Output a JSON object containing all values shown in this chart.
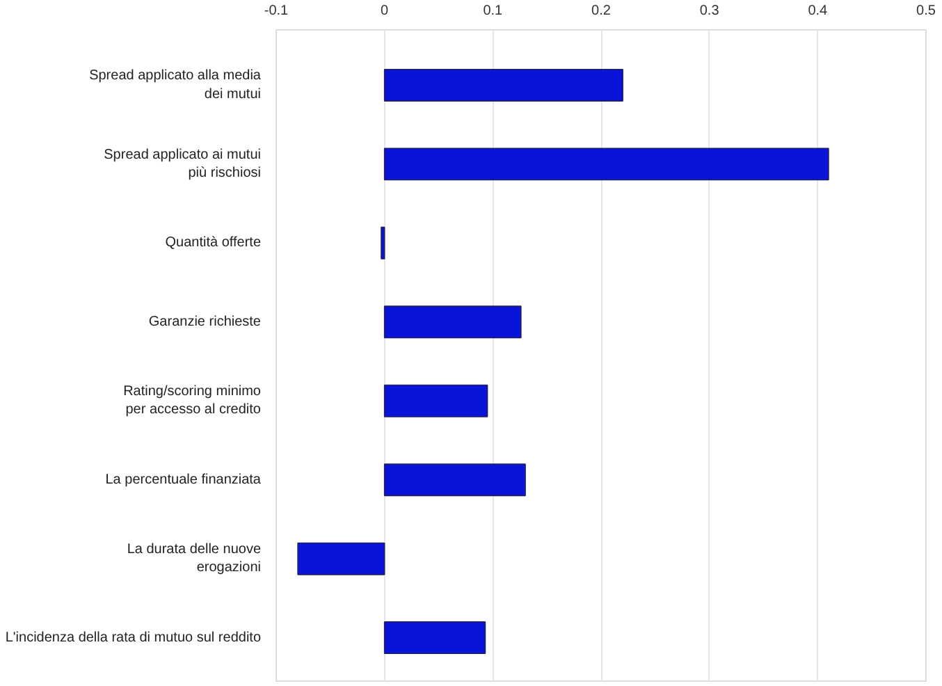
{
  "chart_data": {
    "type": "bar",
    "orientation": "horizontal",
    "categories": [
      "Spread applicato alla media\ndei mutui",
      "Spread applicato ai mutui\npiù rischiosi",
      "Quantità offerte",
      "Garanzie richieste",
      "Rating/scoring minimo\nper accesso al credito",
      "La percentuale finanziata",
      "La durata delle nuove\nerogazioni",
      "L'incidenza della rata di mutuo sul reddito"
    ],
    "values": [
      0.22,
      0.41,
      -0.003,
      0.126,
      0.095,
      0.13,
      -0.08,
      0.093
    ],
    "color": "#0a14d8",
    "xlim": [
      -0.1,
      0.5
    ],
    "xticks": [
      {
        "value": -0.1,
        "label": "-0.1"
      },
      0,
      0.1,
      0.2,
      0.3,
      0.4,
      0.5
    ],
    "grid": "x"
  }
}
